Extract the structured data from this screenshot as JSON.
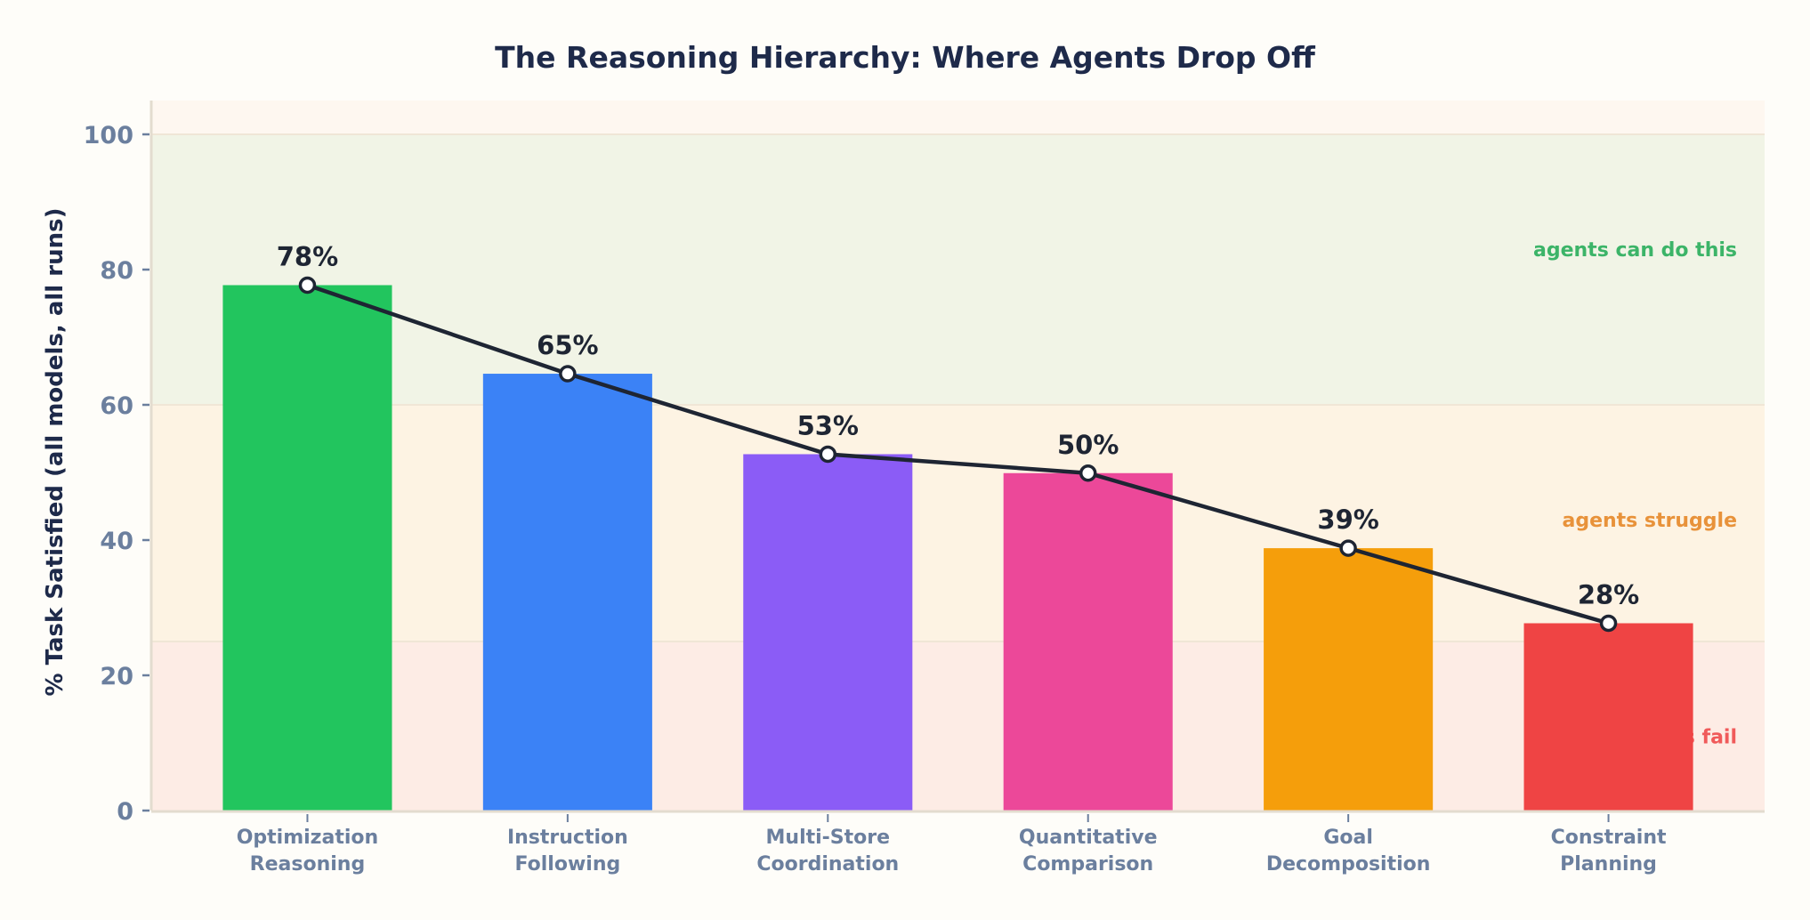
{
  "chart_data": {
    "type": "bar",
    "title": "The Reasoning Hierarchy: Where Agents Drop Off",
    "xlabel": "",
    "ylabel": "% Task Satisfied (all models, all runs)",
    "ylim": [
      0,
      105
    ],
    "yticks": [
      0,
      20,
      40,
      60,
      80,
      100
    ],
    "grid": false,
    "categories": [
      [
        "Optimization",
        "Reasoning"
      ],
      [
        "Instruction",
        "Following"
      ],
      [
        "Multi-Store",
        "Coordination"
      ],
      [
        "Quantitative",
        "Comparison"
      ],
      [
        "Goal",
        "Decomposition"
      ],
      [
        "Constraint",
        "Planning"
      ]
    ],
    "values": [
      77.7,
      64.6,
      52.7,
      49.9,
      38.8,
      27.7
    ],
    "data_labels": [
      "78%",
      "65%",
      "53%",
      "50%",
      "39%",
      "28%"
    ],
    "bar_colors": [
      "#22c55e",
      "#3b82f6",
      "#8b5cf6",
      "#ec4899",
      "#f59e0b",
      "#ef4444"
    ],
    "overlay_line": {
      "color": "#1e2533",
      "marker": "white circle"
    },
    "zones": [
      {
        "label": "agents can do this",
        "from": 60,
        "to": 100,
        "fill": "#f1f4e6",
        "text_color": "#3cb468",
        "label_y": 83
      },
      {
        "label": "agents struggle",
        "from": 25,
        "to": 60,
        "fill": "#fdf3e3",
        "text_color": "#e8923a",
        "label_y": 43
      },
      {
        "label": "agents fail",
        "from": 0,
        "to": 25,
        "fill": "#fdece5",
        "text_color": "#f05a5a",
        "label_y": 11
      }
    ],
    "above_zone_fill": "#fef7f0"
  }
}
